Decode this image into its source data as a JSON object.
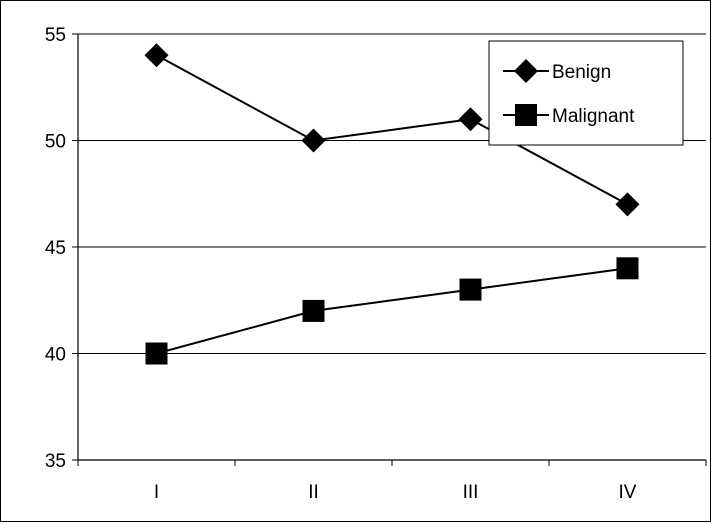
{
  "chart_data": {
    "type": "line",
    "title": "",
    "xlabel": "",
    "ylabel": "",
    "categories": [
      "I",
      "II",
      "III",
      "IV"
    ],
    "ylim": [
      35,
      55
    ],
    "yticks": [
      35,
      40,
      45,
      50,
      55
    ],
    "grid": "horizontal",
    "legend_position": "top-right",
    "series": [
      {
        "name": "Benign",
        "marker": "diamond",
        "color": "#000000",
        "values": [
          54,
          50,
          51,
          47
        ]
      },
      {
        "name": "Malignant",
        "marker": "square",
        "color": "#000000",
        "values": [
          40,
          42,
          43,
          44
        ]
      }
    ]
  }
}
